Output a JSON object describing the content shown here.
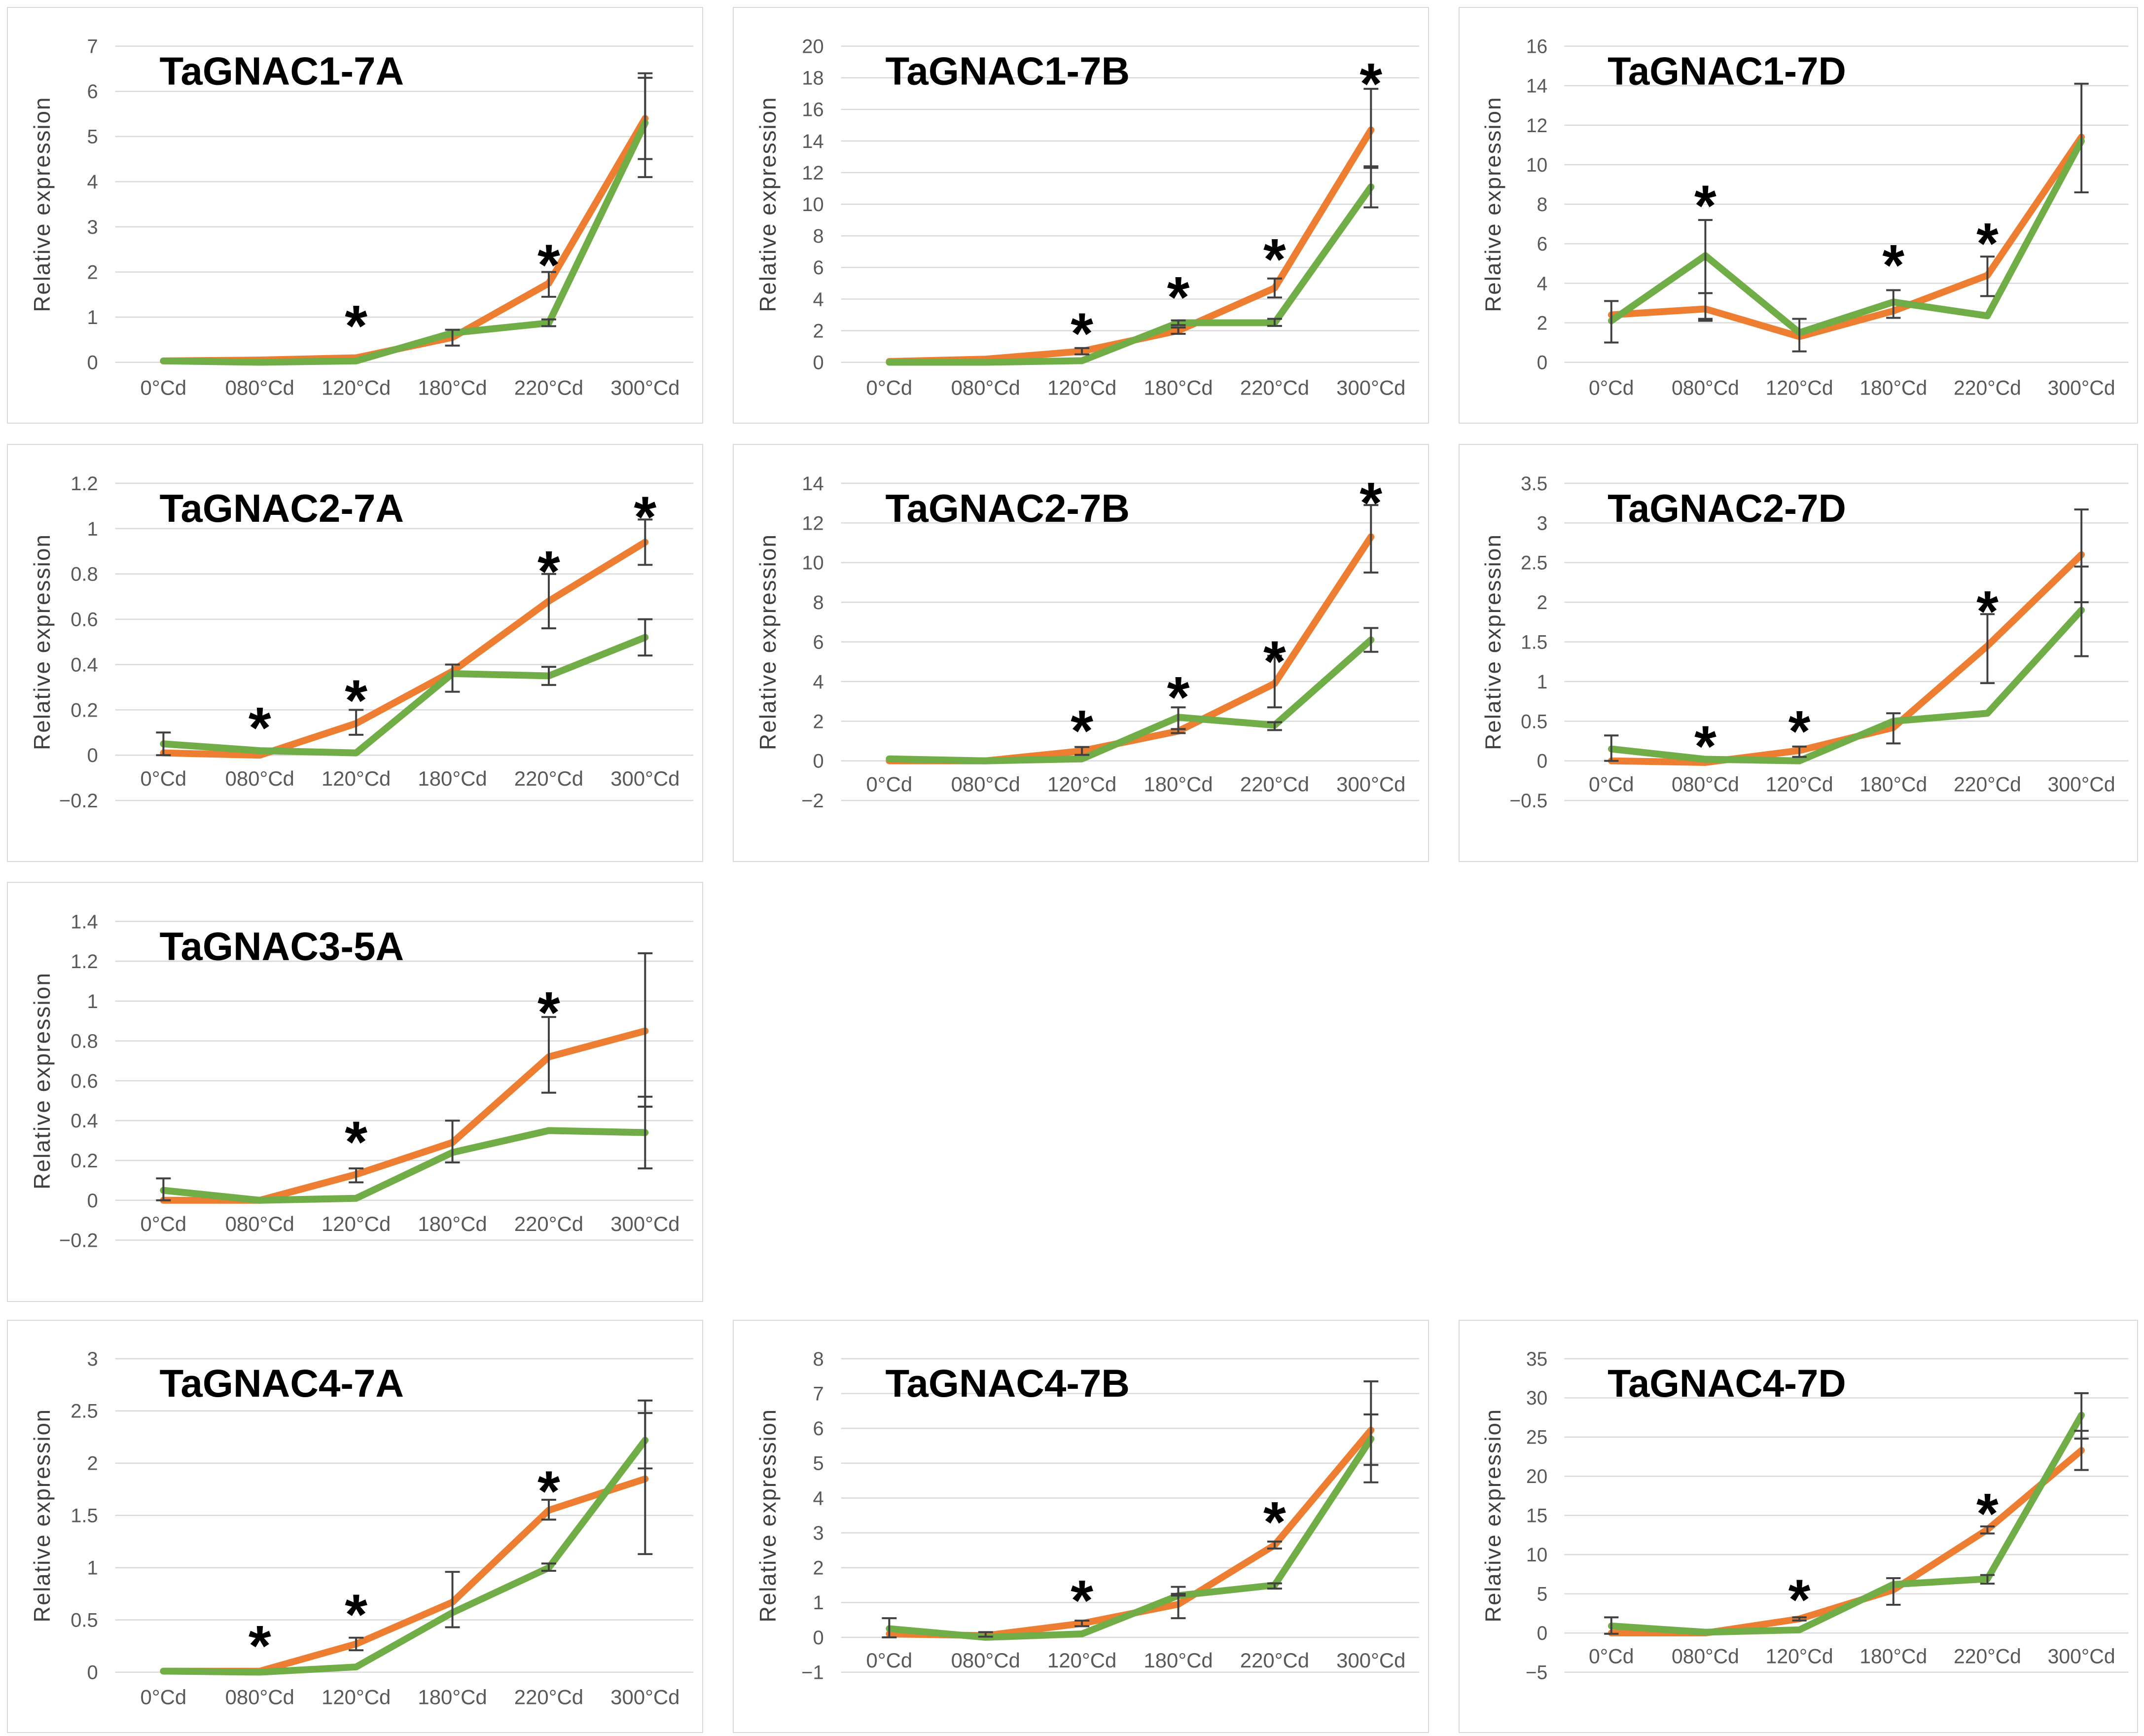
{
  "figure": {
    "y_axis_title": "Relative expression",
    "categories": [
      "0°Cd",
      "080°Cd",
      "120°Cd",
      "180°Cd",
      "220°Cd",
      "300°Cd"
    ],
    "significance_marker": "*"
  },
  "colors": {
    "orange_series": "#ED7D31",
    "green_series": "#70AD47",
    "gridline": "#D9D9D9",
    "panel_border": "#D9D9D9",
    "tick_text": "#595959",
    "axis_title_text": "#404040",
    "title_text": "#000000",
    "error_bar": "#404040",
    "asterisk": "#000000",
    "background": "#FFFFFF"
  },
  "chart_data": [
    {
      "type": "line",
      "title": "TaGNAC1-7A",
      "ylabel": "Relative expression",
      "categories": [
        "0°Cd",
        "080°Cd",
        "120°Cd",
        "180°Cd",
        "220°Cd",
        "300°Cd"
      ],
      "ymin": 0,
      "ymax": 7,
      "ystep": 1,
      "ytick_labels": [
        "7",
        "6",
        "5",
        "4",
        "3",
        "2",
        "1",
        "0"
      ],
      "grid": true,
      "legend": "none",
      "series": [
        {
          "name": "orange",
          "color": "#ED7D31",
          "values": [
            0.03,
            0.05,
            0.1,
            0.55,
            1.75,
            5.4
          ]
        },
        {
          "name": "green",
          "color": "#70AD47",
          "values": [
            0.03,
            0.0,
            0.03,
            0.65,
            0.87,
            5.3
          ]
        }
      ],
      "error_bars": [
        {
          "s": 0,
          "i": 3,
          "lo": 0.37,
          "hi": 0.72
        },
        {
          "s": 0,
          "i": 4,
          "lo": 1.45,
          "hi": 2.0
        },
        {
          "s": 1,
          "i": 4,
          "lo": 0.8,
          "hi": 0.95
        },
        {
          "s": 0,
          "i": 5,
          "lo": 4.5,
          "hi": 6.4
        },
        {
          "s": 1,
          "i": 5,
          "lo": 4.1,
          "hi": 6.3
        }
      ],
      "asterisks": [
        {
          "i": 2,
          "y": 1.15
        },
        {
          "i": 4,
          "y": 2.5
        }
      ]
    },
    {
      "type": "line",
      "title": "TaGNAC1-7B",
      "ylabel": "Relative expression",
      "categories": [
        "0°Cd",
        "080°Cd",
        "120°Cd",
        "180°Cd",
        "220°Cd",
        "300°Cd"
      ],
      "ymin": 0,
      "ymax": 20,
      "ystep": 2,
      "ytick_labels": [
        "20",
        "18",
        "16",
        "14",
        "12",
        "10",
        "8",
        "6",
        "4",
        "2",
        "0"
      ],
      "grid": true,
      "legend": "none",
      "series": [
        {
          "name": "orange",
          "color": "#ED7D31",
          "values": [
            0.05,
            0.2,
            0.7,
            2.0,
            4.7,
            14.7
          ]
        },
        {
          "name": "green",
          "color": "#70AD47",
          "values": [
            0.0,
            0.0,
            0.1,
            2.5,
            2.5,
            11.1
          ]
        }
      ],
      "error_bars": [
        {
          "s": 0,
          "i": 2,
          "lo": 0.5,
          "hi": 0.9
        },
        {
          "s": 0,
          "i": 3,
          "lo": 1.8,
          "hi": 2.2
        },
        {
          "s": 1,
          "i": 3,
          "lo": 2.35,
          "hi": 2.65
        },
        {
          "s": 0,
          "i": 4,
          "lo": 4.1,
          "hi": 5.3
        },
        {
          "s": 1,
          "i": 4,
          "lo": 2.3,
          "hi": 2.75
        },
        {
          "s": 0,
          "i": 5,
          "lo": 12.3,
          "hi": 17.3
        },
        {
          "s": 1,
          "i": 5,
          "lo": 9.8,
          "hi": 12.4
        }
      ],
      "asterisks": [
        {
          "i": 2,
          "y": 2.8
        },
        {
          "i": 3,
          "y": 5.1
        },
        {
          "i": 4,
          "y": 7.5
        },
        {
          "i": 5,
          "y": 18.6
        }
      ]
    },
    {
      "type": "line",
      "title": "TaGNAC1-7D",
      "ylabel": "Relative expression",
      "categories": [
        "0°Cd",
        "080°Cd",
        "120°Cd",
        "180°Cd",
        "220°Cd",
        "300°Cd"
      ],
      "ymin": 0,
      "ymax": 16,
      "ystep": 2,
      "ytick_labels": [
        "16",
        "14",
        "12",
        "10",
        "8",
        "6",
        "4",
        "2",
        "0"
      ],
      "grid": true,
      "legend": "none",
      "series": [
        {
          "name": "orange",
          "color": "#ED7D31",
          "values": [
            2.4,
            2.7,
            1.3,
            2.6,
            4.4,
            11.4
          ]
        },
        {
          "name": "green",
          "color": "#70AD47",
          "values": [
            2.1,
            5.4,
            1.5,
            3.05,
            2.35,
            11.2
          ]
        }
      ],
      "error_bars": [
        {
          "s": 0,
          "i": 0,
          "lo": 1.0,
          "hi": 3.1
        },
        {
          "s": 0,
          "i": 1,
          "lo": 2.2,
          "hi": 3.5
        },
        {
          "s": 1,
          "i": 1,
          "lo": 2.1,
          "hi": 7.2
        },
        {
          "s": 0,
          "i": 2,
          "lo": 0.55,
          "hi": 2.2
        },
        {
          "s": 1,
          "i": 3,
          "lo": 2.25,
          "hi": 3.65
        },
        {
          "s": 0,
          "i": 4,
          "lo": 3.35,
          "hi": 5.35
        },
        {
          "s": 0,
          "i": 5,
          "lo": 8.6,
          "hi": 14.1
        }
      ],
      "asterisks": [
        {
          "i": 1,
          "y": 8.7
        },
        {
          "i": 3,
          "y": 5.7
        },
        {
          "i": 4,
          "y": 6.8
        }
      ]
    },
    {
      "type": "line",
      "title": "TaGNAC2-7A",
      "ylabel": "Relative expression",
      "categories": [
        "0°Cd",
        "080°Cd",
        "120°Cd",
        "180°Cd",
        "220°Cd",
        "300°Cd"
      ],
      "ymin": -0.2,
      "ymax": 1.2,
      "ystep": 0.2,
      "ytick_labels": [
        "1.2",
        "1",
        "0.8",
        "0.6",
        "0.4",
        "0.2",
        "0",
        "−0.2"
      ],
      "grid": true,
      "legend": "none",
      "series": [
        {
          "name": "orange",
          "color": "#ED7D31",
          "values": [
            0.01,
            0.0,
            0.14,
            0.37,
            0.68,
            0.94
          ]
        },
        {
          "name": "green",
          "color": "#70AD47",
          "values": [
            0.05,
            0.02,
            0.01,
            0.36,
            0.35,
            0.52
          ]
        }
      ],
      "error_bars": [
        {
          "s": 1,
          "i": 0,
          "lo": 0.0,
          "hi": 0.1
        },
        {
          "s": 0,
          "i": 2,
          "lo": 0.09,
          "hi": 0.2
        },
        {
          "s": 0,
          "i": 3,
          "lo": 0.28,
          "hi": 0.4
        },
        {
          "s": 0,
          "i": 4,
          "lo": 0.56,
          "hi": 0.8
        },
        {
          "s": 1,
          "i": 4,
          "lo": 0.31,
          "hi": 0.39
        },
        {
          "s": 0,
          "i": 5,
          "lo": 0.84,
          "hi": 1.04
        },
        {
          "s": 1,
          "i": 5,
          "lo": 0.44,
          "hi": 0.6
        }
      ],
      "asterisks": [
        {
          "i": 1,
          "y": 0.19
        },
        {
          "i": 2,
          "y": 0.31
        },
        {
          "i": 4,
          "y": 0.88
        },
        {
          "i": 5,
          "y": 1.12
        }
      ]
    },
    {
      "type": "line",
      "title": "TaGNAC2-7B",
      "ylabel": "Relative expression",
      "categories": [
        "0°Cd",
        "080°Cd",
        "120°Cd",
        "180°Cd",
        "220°Cd",
        "300°Cd"
      ],
      "ymin": -2,
      "ymax": 14,
      "ystep": 2,
      "ytick_labels": [
        "14",
        "12",
        "10",
        "8",
        "6",
        "4",
        "2",
        "0",
        "−2"
      ],
      "grid": true,
      "legend": "none",
      "series": [
        {
          "name": "orange",
          "color": "#ED7D31",
          "values": [
            0.0,
            0.0,
            0.5,
            1.5,
            3.9,
            11.3
          ]
        },
        {
          "name": "green",
          "color": "#70AD47",
          "values": [
            0.1,
            0.0,
            0.1,
            2.2,
            1.8,
            6.1
          ]
        }
      ],
      "error_bars": [
        {
          "s": 0,
          "i": 2,
          "lo": 0.3,
          "hi": 0.7
        },
        {
          "s": 0,
          "i": 3,
          "lo": 1.4,
          "hi": 1.6
        },
        {
          "s": 1,
          "i": 3,
          "lo": 1.6,
          "hi": 2.7
        },
        {
          "s": 0,
          "i": 4,
          "lo": 2.7,
          "hi": 5.3
        },
        {
          "s": 1,
          "i": 4,
          "lo": 1.55,
          "hi": 1.95
        },
        {
          "s": 0,
          "i": 5,
          "lo": 9.5,
          "hi": 12.9
        },
        {
          "s": 1,
          "i": 5,
          "lo": 5.5,
          "hi": 6.7
        }
      ],
      "asterisks": [
        {
          "i": 2,
          "y": 2.3
        },
        {
          "i": 3,
          "y": 4.0
        },
        {
          "i": 4,
          "y": 5.8
        },
        {
          "i": 5,
          "y": 13.8
        }
      ]
    },
    {
      "type": "line",
      "title": "TaGNAC2-7D",
      "ylabel": "Relative expression",
      "categories": [
        "0°Cd",
        "080°Cd",
        "120°Cd",
        "180°Cd",
        "220°Cd",
        "300°Cd"
      ],
      "ymin": -0.5,
      "ymax": 3.5,
      "ystep": 0.5,
      "ytick_labels": [
        "3.5",
        "3",
        "2.5",
        "2",
        "1.5",
        "1",
        "0.5",
        "0",
        "−0.5"
      ],
      "grid": true,
      "legend": "none",
      "series": [
        {
          "name": "orange",
          "color": "#ED7D31",
          "values": [
            0.0,
            -0.02,
            0.13,
            0.42,
            1.45,
            2.6
          ]
        },
        {
          "name": "green",
          "color": "#70AD47",
          "values": [
            0.15,
            0.02,
            0.0,
            0.5,
            0.6,
            1.9
          ]
        }
      ],
      "error_bars": [
        {
          "s": 1,
          "i": 0,
          "lo": 0.0,
          "hi": 0.32
        },
        {
          "s": 0,
          "i": 2,
          "lo": 0.05,
          "hi": 0.18
        },
        {
          "s": 0,
          "i": 3,
          "lo": 0.22,
          "hi": 0.6
        },
        {
          "s": 0,
          "i": 4,
          "lo": 0.98,
          "hi": 1.85
        },
        {
          "s": 0,
          "i": 5,
          "lo": 2.0,
          "hi": 3.17
        },
        {
          "s": 1,
          "i": 5,
          "lo": 1.32,
          "hi": 2.45
        }
      ],
      "asterisks": [
        {
          "i": 1,
          "y": 0.38
        },
        {
          "i": 2,
          "y": 0.57
        },
        {
          "i": 4,
          "y": 2.08
        }
      ]
    },
    {
      "type": "line",
      "title": "TaGNAC3-5A",
      "ylabel": "Relative expression",
      "categories": [
        "0°Cd",
        "080°Cd",
        "120°Cd",
        "180°Cd",
        "220°Cd",
        "300°Cd"
      ],
      "ymin": -0.2,
      "ymax": 1.4,
      "ystep": 0.2,
      "ytick_labels": [
        "1.4",
        "1.2",
        "1",
        "0.8",
        "0.6",
        "0.4",
        "0.2",
        "0",
        "−0.2"
      ],
      "grid": true,
      "legend": "none",
      "series": [
        {
          "name": "orange",
          "color": "#ED7D31",
          "values": [
            0.0,
            0.0,
            0.13,
            0.29,
            0.72,
            0.85
          ]
        },
        {
          "name": "green",
          "color": "#70AD47",
          "values": [
            0.05,
            0.0,
            0.01,
            0.24,
            0.35,
            0.34
          ]
        }
      ],
      "error_bars": [
        {
          "s": 1,
          "i": 0,
          "lo": 0.0,
          "hi": 0.11
        },
        {
          "s": 0,
          "i": 2,
          "lo": 0.09,
          "hi": 0.16
        },
        {
          "s": 0,
          "i": 3,
          "lo": 0.19,
          "hi": 0.4
        },
        {
          "s": 0,
          "i": 4,
          "lo": 0.54,
          "hi": 0.92
        },
        {
          "s": 0,
          "i": 5,
          "lo": 0.47,
          "hi": 1.24
        },
        {
          "s": 1,
          "i": 5,
          "lo": 0.16,
          "hi": 0.52
        }
      ],
      "asterisks": [
        {
          "i": 2,
          "y": 0.37
        },
        {
          "i": 4,
          "y": 1.02
        }
      ]
    },
    {
      "type": "line",
      "title": "TaGNAC4-7A",
      "ylabel": "Relative expression",
      "categories": [
        "0°Cd",
        "080°Cd",
        "120°Cd",
        "180°Cd",
        "220°Cd",
        "300°Cd"
      ],
      "ymin": 0,
      "ymax": 3,
      "ystep": 0.5,
      "ytick_labels": [
        "3",
        "2.5",
        "2",
        "1.5",
        "1",
        "0.5",
        "0"
      ],
      "grid": true,
      "legend": "none",
      "series": [
        {
          "name": "orange",
          "color": "#ED7D31",
          "values": [
            0.01,
            0.01,
            0.27,
            0.67,
            1.55,
            1.85
          ]
        },
        {
          "name": "green",
          "color": "#70AD47",
          "values": [
            0.01,
            0.0,
            0.05,
            0.57,
            1.0,
            2.22
          ]
        }
      ],
      "error_bars": [
        {
          "s": 0,
          "i": 2,
          "lo": 0.21,
          "hi": 0.33
        },
        {
          "s": 0,
          "i": 3,
          "lo": 0.43,
          "hi": 0.96
        },
        {
          "s": 0,
          "i": 4,
          "lo": 1.46,
          "hi": 1.65
        },
        {
          "s": 1,
          "i": 4,
          "lo": 0.97,
          "hi": 1.04
        },
        {
          "s": 0,
          "i": 5,
          "lo": 1.13,
          "hi": 2.48
        },
        {
          "s": 1,
          "i": 5,
          "lo": 1.95,
          "hi": 2.6
        }
      ],
      "asterisks": [
        {
          "i": 1,
          "y": 0.4
        },
        {
          "i": 2,
          "y": 0.7
        },
        {
          "i": 4,
          "y": 1.88
        }
      ]
    },
    {
      "type": "line",
      "title": "TaGNAC4-7B",
      "ylabel": "Relative expression",
      "categories": [
        "0°Cd",
        "080°Cd",
        "120°Cd",
        "180°Cd",
        "220°Cd",
        "300°Cd"
      ],
      "ymin": -1,
      "ymax": 8,
      "ystep": 1,
      "ytick_labels": [
        "8",
        "7",
        "6",
        "5",
        "4",
        "3",
        "2",
        "1",
        "0",
        "−1"
      ],
      "grid": true,
      "legend": "none",
      "series": [
        {
          "name": "orange",
          "color": "#ED7D31",
          "values": [
            0.1,
            0.05,
            0.4,
            0.95,
            2.65,
            5.95
          ]
        },
        {
          "name": "green",
          "color": "#70AD47",
          "values": [
            0.25,
            0.0,
            0.1,
            1.2,
            1.5,
            5.7
          ]
        }
      ],
      "error_bars": [
        {
          "s": 1,
          "i": 0,
          "lo": 0.0,
          "hi": 0.55
        },
        {
          "s": 0,
          "i": 1,
          "lo": 0.02,
          "hi": 0.15
        },
        {
          "s": 0,
          "i": 2,
          "lo": 0.32,
          "hi": 0.48
        },
        {
          "s": 0,
          "i": 3,
          "lo": 0.55,
          "hi": 1.2
        },
        {
          "s": 1,
          "i": 3,
          "lo": 1.25,
          "hi": 1.45
        },
        {
          "s": 0,
          "i": 4,
          "lo": 2.55,
          "hi": 2.75
        },
        {
          "s": 1,
          "i": 4,
          "lo": 1.4,
          "hi": 1.55
        },
        {
          "s": 0,
          "i": 5,
          "lo": 4.45,
          "hi": 7.35
        },
        {
          "s": 1,
          "i": 5,
          "lo": 4.95,
          "hi": 6.4
        }
      ],
      "asterisks": [
        {
          "i": 2,
          "y": 1.5
        },
        {
          "i": 4,
          "y": 3.75
        }
      ]
    },
    {
      "type": "line",
      "title": "TaGNAC4-7D",
      "ylabel": "Relative expression",
      "categories": [
        "0°Cd",
        "080°Cd",
        "120°Cd",
        "180°Cd",
        "220°Cd",
        "300°Cd"
      ],
      "ymin": -5,
      "ymax": 35,
      "ystep": 5,
      "ytick_labels": [
        "35",
        "30",
        "25",
        "20",
        "15",
        "10",
        "5",
        "0",
        "−5"
      ],
      "grid": true,
      "legend": "none",
      "series": [
        {
          "name": "orange",
          "color": "#ED7D31",
          "values": [
            0.0,
            0.0,
            1.8,
            5.5,
            13.2,
            23.3
          ]
        },
        {
          "name": "green",
          "color": "#70AD47",
          "values": [
            0.9,
            0.1,
            0.4,
            6.2,
            6.9,
            27.8
          ]
        }
      ],
      "error_bars": [
        {
          "s": 1,
          "i": 0,
          "lo": -0.1,
          "hi": 2.0
        },
        {
          "s": 0,
          "i": 2,
          "lo": 1.6,
          "hi": 2.0
        },
        {
          "s": 1,
          "i": 3,
          "lo": 3.6,
          "hi": 7.0
        },
        {
          "s": 0,
          "i": 4,
          "lo": 12.7,
          "hi": 13.6
        },
        {
          "s": 1,
          "i": 4,
          "lo": 6.3,
          "hi": 7.4
        },
        {
          "s": 0,
          "i": 5,
          "lo": 20.8,
          "hi": 25.8
        },
        {
          "s": 1,
          "i": 5,
          "lo": 24.8,
          "hi": 30.6
        }
      ],
      "asterisks": [
        {
          "i": 2,
          "y": 6.2
        },
        {
          "i": 4,
          "y": 17.2
        }
      ]
    }
  ]
}
